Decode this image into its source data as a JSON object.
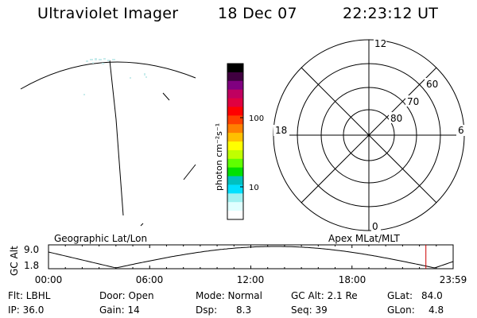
{
  "header": {
    "instrument": "Ultraviolet Imager",
    "date": "18 Dec 07",
    "time": "22:23:12 UT"
  },
  "colorbar": {
    "unit": "photon cm⁻²s⁻¹",
    "tick_labels": [
      "100",
      "10"
    ],
    "colors": [
      "#000000",
      "#400040",
      "#800080",
      "#c00060",
      "#e00040",
      "#ff0000",
      "#ff4000",
      "#ff8000",
      "#ffc000",
      "#ffff00",
      "#c0ff00",
      "#60ff00",
      "#00e000",
      "#00c0c0",
      "#00e0ff",
      "#a0f0f0",
      "#e0ffff",
      "#ffffff"
    ]
  },
  "polar": {
    "labels": {
      "top": "12",
      "left": "18",
      "right": "6",
      "bottom": "0"
    },
    "ring_labels": [
      "60",
      "70",
      "80"
    ]
  },
  "timeline": {
    "left_title": "Geographic Lat/Lon",
    "right_title": "Apex MLat/MLT",
    "axis_label": "GC Alt",
    "y_ticks": [
      "9.0",
      "1.8"
    ],
    "x_ticks": [
      "00:00",
      "06:00",
      "12:00",
      "18:00",
      "23:59"
    ],
    "marker_time": "22:23",
    "marker_color": "#cc0000"
  },
  "status": {
    "flt": "Flt: LBHL",
    "ip": "IP: 36.0",
    "door": "Door: Open",
    "gain": "Gain: 14",
    "mode": "Mode: Normal",
    "dsp_label": "Dsp:",
    "dsp_value": "8.3",
    "gc_alt": "GC Alt: 2.1 Re",
    "seq": "Seq: 39",
    "glat_label": "GLat:",
    "glat_value": "84.0",
    "glon_label": "GLon:",
    "glon_value": "4.8"
  }
}
